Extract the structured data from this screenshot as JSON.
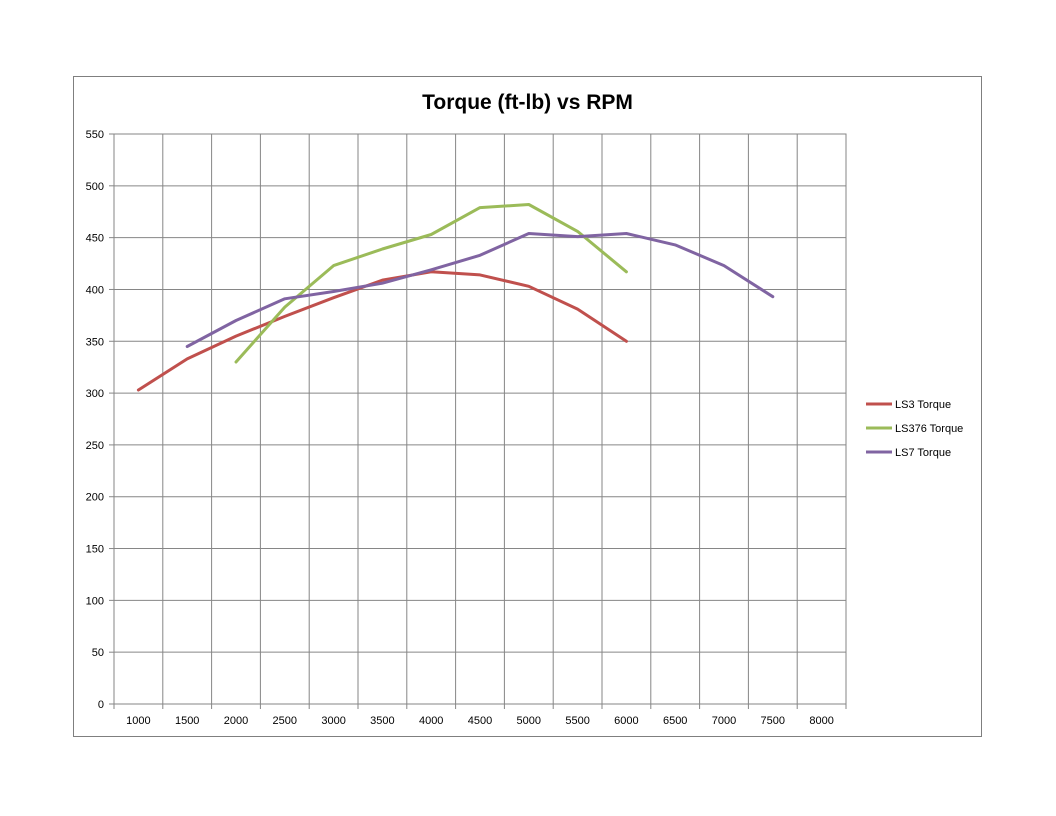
{
  "chart_data": {
    "type": "line",
    "title": "Torque (ft-lb) vs RPM",
    "xlabel": "",
    "ylabel": "",
    "x_ticks": [
      1000,
      1500,
      2000,
      2500,
      3000,
      3500,
      4000,
      4500,
      5000,
      5500,
      6000,
      6500,
      7000,
      7500,
      8000
    ],
    "xlim": [
      750,
      8250
    ],
    "ylim": [
      0,
      550
    ],
    "y_ticks": [
      0,
      50,
      100,
      150,
      200,
      250,
      300,
      350,
      400,
      450,
      500,
      550
    ],
    "grid": true,
    "legend_position": "right",
    "series": [
      {
        "name": "LS3 Torque",
        "color": "#c0504d",
        "x": [
          1000,
          1500,
          2000,
          2500,
          3000,
          3500,
          4000,
          4500,
          5000,
          5500,
          6000
        ],
        "y": [
          303,
          333,
          355,
          374,
          392,
          409,
          417,
          414,
          403,
          381,
          350
        ]
      },
      {
        "name": "LS376 Torque",
        "color": "#9bbb59",
        "x": [
          2000,
          2500,
          3000,
          3500,
          4000,
          4500,
          5000,
          5500,
          6000
        ],
        "y": [
          330,
          383,
          423,
          439,
          453,
          479,
          482,
          456,
          417
        ]
      },
      {
        "name": "LS7 Torque",
        "color": "#8064a2",
        "x": [
          1500,
          2000,
          2500,
          3000,
          3500,
          4000,
          4500,
          5000,
          5500,
          6000,
          6500,
          7000,
          7500
        ],
        "y": [
          345,
          370,
          391,
          398,
          406,
          419,
          433,
          454,
          451,
          454,
          443,
          423,
          393
        ]
      }
    ]
  }
}
